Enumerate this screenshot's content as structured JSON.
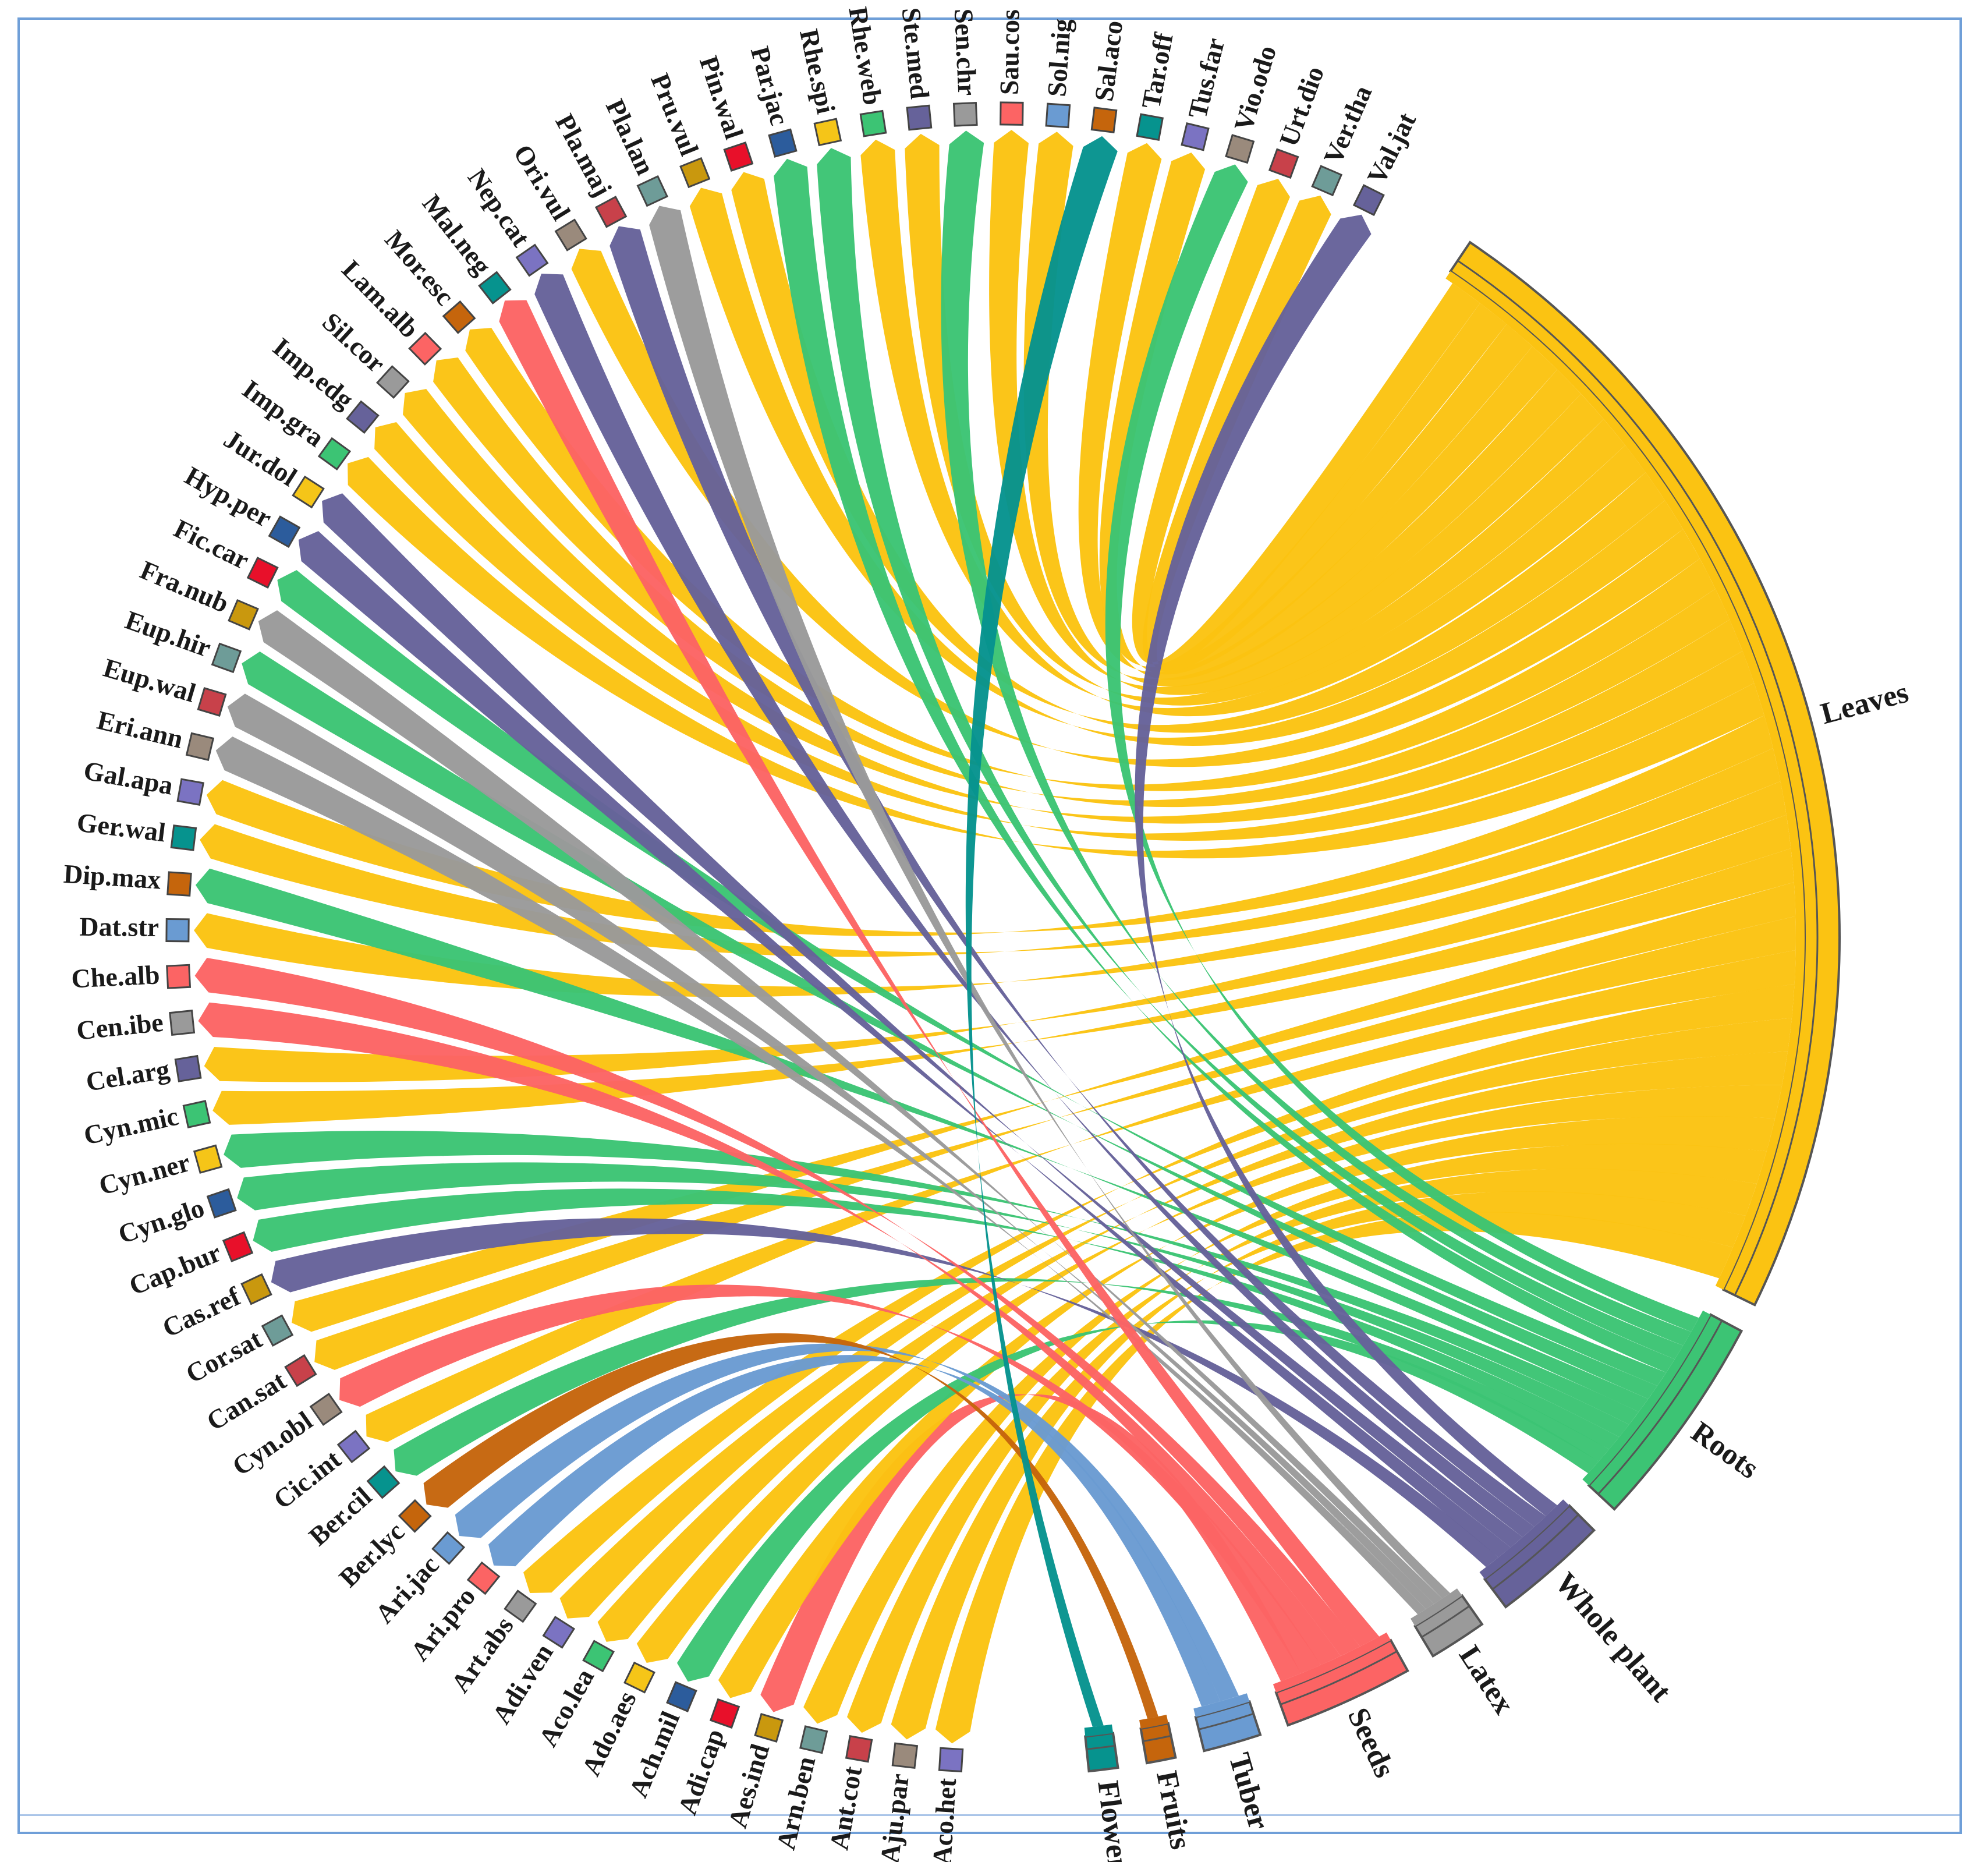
{
  "chart_data": {
    "type": "chord",
    "title": "",
    "colors": {
      "gold": "#fbc312",
      "green": "#3cc474",
      "purple": "#66629a",
      "grey": "#9a9a9a",
      "salmon": "#fc6464",
      "teal": "#06938e",
      "steel": "#6a9bd2",
      "orange": "#c5650c",
      "outline": "#555555"
    },
    "targets": [
      {
        "name": "Leaves",
        "color": "gold"
      },
      {
        "name": "Roots",
        "color": "green"
      },
      {
        "name": "Whole plant",
        "color": "purple"
      },
      {
        "name": "Latex",
        "color": "grey"
      },
      {
        "name": "Seeds",
        "color": "salmon"
      },
      {
        "name": "Tuber",
        "color": "steel"
      },
      {
        "name": "Fruits",
        "color": "orange"
      },
      {
        "name": "Flowers",
        "color": "teal"
      }
    ],
    "species": [
      {
        "name": "Aco.het",
        "box": "#7b73c2",
        "target": "Leaves"
      },
      {
        "name": "Aju.par",
        "box": "#9a8a7c",
        "target": "Leaves"
      },
      {
        "name": "Ant.cot",
        "box": "#c8414a",
        "target": "Leaves"
      },
      {
        "name": "Arn.ben",
        "box": "#6e9c98",
        "target": "Leaves"
      },
      {
        "name": "Aes.ind",
        "box": "#c9980e",
        "target": "Seeds"
      },
      {
        "name": "Adi.cap",
        "box": "#e8102a",
        "target": "Leaves"
      },
      {
        "name": "Ach.mil",
        "box": "#2c5c9c",
        "target": "Roots"
      },
      {
        "name": "Ado.aes",
        "box": "#f5c518",
        "target": "Leaves"
      },
      {
        "name": "Aco.lea",
        "box": "#3cc474",
        "target": "Leaves"
      },
      {
        "name": "Adi.ven",
        "box": "#7b73c2",
        "target": "Leaves"
      },
      {
        "name": "Art.abs",
        "box": "#9a9a9a",
        "target": "Leaves"
      },
      {
        "name": "Ari.pro",
        "box": "#fc6464",
        "target": "Tuber"
      },
      {
        "name": "Ari.jac",
        "box": "#6a9bd2",
        "target": "Tuber"
      },
      {
        "name": "Ber.lyc",
        "box": "#c5650c",
        "target": "Fruits"
      },
      {
        "name": "Ber.cil",
        "box": "#06938e",
        "target": "Roots"
      },
      {
        "name": "Cic.int",
        "box": "#7b73c2",
        "target": "Leaves"
      },
      {
        "name": "Cyn.obl",
        "box": "#9a8a7c",
        "target": "Seeds"
      },
      {
        "name": "Can.sat",
        "box": "#c8414a",
        "target": "Leaves"
      },
      {
        "name": "Cor.sat",
        "box": "#6e9c98",
        "target": "Leaves"
      },
      {
        "name": "Cas.ref",
        "box": "#c9980e",
        "target": "Whole plant"
      },
      {
        "name": "Cap.bur",
        "box": "#e8102a",
        "target": "Roots"
      },
      {
        "name": "Cyn.glo",
        "box": "#2c5c9c",
        "target": "Roots"
      },
      {
        "name": "Cyn.ner",
        "box": "#f5c518",
        "target": "Roots"
      },
      {
        "name": "Cyn.mic",
        "box": "#3cc474",
        "target": "Leaves"
      },
      {
        "name": "Cel.arg",
        "box": "#66629a",
        "target": "Leaves"
      },
      {
        "name": "Cen.ibe",
        "box": "#9a9a9a",
        "target": "Seeds"
      },
      {
        "name": "Che.alb",
        "box": "#fc6464",
        "target": "Seeds"
      },
      {
        "name": "Dat.str",
        "box": "#6a9bd2",
        "target": "Leaves"
      },
      {
        "name": "Dip.max",
        "box": "#c5650c",
        "target": "Roots"
      },
      {
        "name": "Ger.wal",
        "box": "#06938e",
        "target": "Leaves"
      },
      {
        "name": "Gal.apa",
        "box": "#7b73c2",
        "target": "Leaves"
      },
      {
        "name": "Eri.ann",
        "box": "#9a8a7c",
        "target": "Latex"
      },
      {
        "name": "Eup.wal",
        "box": "#c8414a",
        "target": "Latex"
      },
      {
        "name": "Eup.hir",
        "box": "#6e9c98",
        "target": "Roots"
      },
      {
        "name": "Fra.nub",
        "box": "#c9980e",
        "target": "Latex"
      },
      {
        "name": "Fic.car",
        "box": "#e8102a",
        "target": "Roots"
      },
      {
        "name": "Hyp.per",
        "box": "#2c5c9c",
        "target": "Whole plant"
      },
      {
        "name": "Jur.dol",
        "box": "#f5c518",
        "target": "Whole plant"
      },
      {
        "name": "Imp.gra",
        "box": "#3cc474",
        "target": "Leaves"
      },
      {
        "name": "Imp.edg",
        "box": "#66629a",
        "target": "Leaves"
      },
      {
        "name": "Sil.cor",
        "box": "#9a9a9a",
        "target": "Leaves"
      },
      {
        "name": "Lam.alb",
        "box": "#fc6464",
        "target": "Leaves"
      },
      {
        "name": "Mor.esc",
        "box": "#c5650c",
        "target": "Leaves"
      },
      {
        "name": "Mal.neg",
        "box": "#06938e",
        "target": "Seeds"
      },
      {
        "name": "Nep.cat",
        "box": "#7b73c2",
        "target": "Whole plant"
      },
      {
        "name": "Ori.vul",
        "box": "#9a8a7c",
        "target": "Leaves"
      },
      {
        "name": "Pla.maj",
        "box": "#c8414a",
        "target": "Whole plant"
      },
      {
        "name": "Pla.lan",
        "box": "#6e9c98",
        "target": "Latex"
      },
      {
        "name": "Pru.vul",
        "box": "#c9980e",
        "target": "Leaves"
      },
      {
        "name": "Pin.wal",
        "box": "#e8102a",
        "target": "Leaves"
      },
      {
        "name": "Par.jac",
        "box": "#2c5c9c",
        "target": "Roots"
      },
      {
        "name": "Rhe.spi",
        "box": "#f5c518",
        "target": "Roots"
      },
      {
        "name": "Rhe.web",
        "box": "#3cc474",
        "target": "Leaves"
      },
      {
        "name": "Ste.med",
        "box": "#66629a",
        "target": "Leaves"
      },
      {
        "name": "Sen.chr",
        "box": "#9a9a9a",
        "target": "Roots"
      },
      {
        "name": "Sau.cos",
        "box": "#fc6464",
        "target": "Leaves"
      },
      {
        "name": "Sol.nig",
        "box": "#6a9bd2",
        "target": "Leaves"
      },
      {
        "name": "Sal.aco",
        "box": "#c5650c",
        "target": "Flowers"
      },
      {
        "name": "Tar.off",
        "box": "#06938e",
        "target": "Leaves"
      },
      {
        "name": "Tus.far",
        "box": "#7b73c2",
        "target": "Leaves"
      },
      {
        "name": "Vio.odo",
        "box": "#9a8a7c",
        "target": "Roots"
      },
      {
        "name": "Urt.dio",
        "box": "#c8414a",
        "target": "Leaves"
      },
      {
        "name": "Ver.tha",
        "box": "#6e9c98",
        "target": "Leaves"
      },
      {
        "name": "Val.jat",
        "box": "#66629a",
        "target": "Whole plant"
      }
    ]
  }
}
